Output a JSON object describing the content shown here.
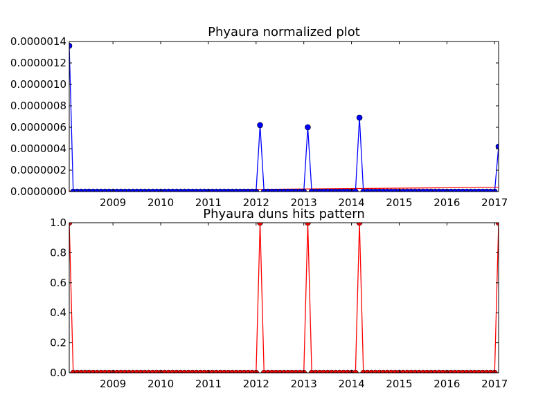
{
  "chart_data": [
    {
      "type": "line",
      "title": "Phyaura normalized plot",
      "xlabel": "",
      "ylabel": "",
      "x_range": [
        "2008-02",
        "2017-02"
      ],
      "ylim": [
        0,
        1.4e-06
      ],
      "x_ticks": [
        "2009",
        "2010",
        "2011",
        "2012",
        "2013",
        "2014",
        "2015",
        "2016",
        "2017"
      ],
      "y_ticks": [
        "0.0000000",
        "0.0000002",
        "0.0000004",
        "0.0000006",
        "0.0000008",
        "0.0000010",
        "0.0000012",
        "0.0000014"
      ],
      "grid": false,
      "colors": {
        "main": "#0000ff",
        "trend": "#ff0000"
      },
      "point_frequency": "monthly",
      "spikes": [
        {
          "x": "2008-02",
          "y": 1.36e-06
        },
        {
          "x": "2012-02",
          "y": 6.2e-07
        },
        {
          "x": "2013-02",
          "y": 6e-07
        },
        {
          "x": "2014-03",
          "y": 6.9e-07
        },
        {
          "x": "2017-02",
          "y": 4.2e-07
        }
      ],
      "baseline_value": 0,
      "trend_line": [
        {
          "x": "2008-02",
          "y": 5e-09
        },
        {
          "x": "2017-02",
          "y": 4e-08
        }
      ]
    },
    {
      "type": "line",
      "title": "Phyaura duns hits pattern",
      "xlabel": "",
      "ylabel": "",
      "x_range": [
        "2008-02",
        "2017-02"
      ],
      "ylim": [
        0,
        1.0
      ],
      "x_ticks": [
        "2009",
        "2010",
        "2011",
        "2012",
        "2013",
        "2014",
        "2015",
        "2016",
        "2017"
      ],
      "y_ticks": [
        "0.0",
        "0.2",
        "0.4",
        "0.6",
        "0.8",
        "1.0"
      ],
      "grid": false,
      "colors": {
        "main": "#ff0000"
      },
      "point_frequency": "monthly",
      "spikes": [
        {
          "x": "2008-02",
          "y": 1.0
        },
        {
          "x": "2012-02",
          "y": 1.0
        },
        {
          "x": "2013-02",
          "y": 1.0
        },
        {
          "x": "2014-03",
          "y": 1.0
        },
        {
          "x": "2017-02",
          "y": 1.0
        }
      ],
      "baseline_value": 0
    }
  ]
}
